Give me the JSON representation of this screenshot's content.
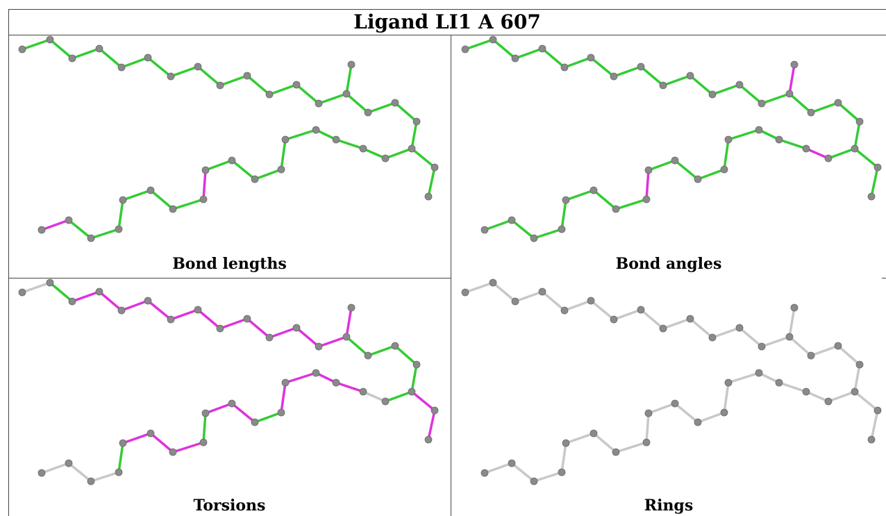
{
  "title": "Ligand LI1 A 607",
  "colors": {
    "good": "#33cc33",
    "outlier": "#dd33dd",
    "none": "#c8c8c8",
    "atom": "#8a8a8a"
  },
  "panels": [
    {
      "caption": "Bond lengths",
      "outliers": [
        [
          29,
          30
        ],
        [
          36,
          37
        ]
      ],
      "uncolored": []
    },
    {
      "caption": "Bond angles",
      "outliers": [
        [
          13,
          14
        ],
        [
          14,
          15
        ],
        [
          20,
          21
        ],
        [
          21,
          22
        ],
        [
          29,
          30
        ]
      ],
      "uncolored": []
    },
    {
      "caption": "Torsions",
      "outliers": [
        [
          2,
          3
        ],
        [
          3,
          4
        ],
        [
          4,
          5
        ],
        [
          5,
          6
        ],
        [
          6,
          7
        ],
        [
          7,
          8
        ],
        [
          8,
          9
        ],
        [
          9,
          10
        ],
        [
          10,
          11
        ],
        [
          11,
          12
        ],
        [
          12,
          13
        ],
        [
          13,
          14
        ],
        [
          14,
          15
        ],
        [
          18,
          19
        ],
        [
          19,
          20
        ],
        [
          22,
          23
        ],
        [
          23,
          24
        ],
        [
          24,
          25
        ],
        [
          25,
          26
        ],
        [
          27,
          28
        ],
        [
          28,
          29
        ],
        [
          30,
          31
        ],
        [
          31,
          32
        ],
        [
          32,
          33
        ]
      ],
      "uncolored": [
        [
          0,
          1
        ],
        [
          20,
          21
        ],
        [
          21,
          22
        ],
        [
          34,
          35
        ],
        [
          35,
          36
        ],
        [
          36,
          37
        ]
      ]
    },
    {
      "caption": "Rings",
      "outliers": [],
      "uncolored": "all"
    }
  ]
}
